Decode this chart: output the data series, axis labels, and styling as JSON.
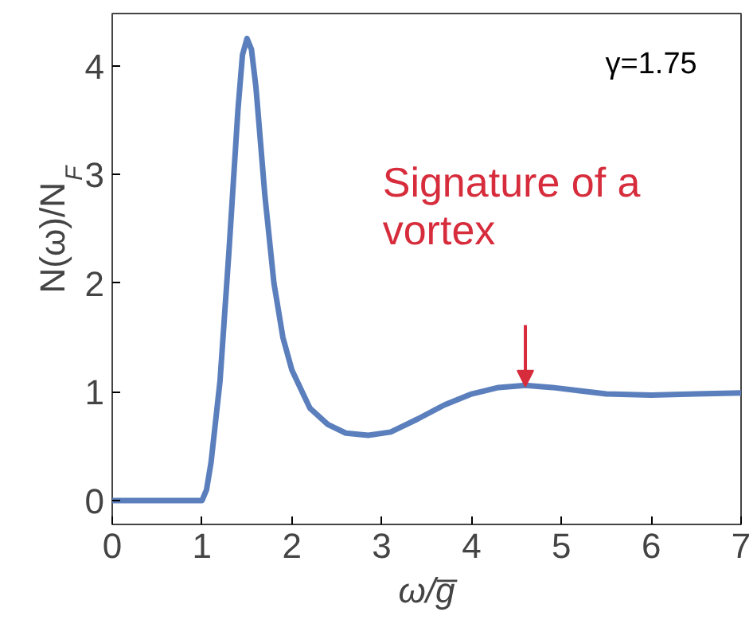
{
  "chart_data": {
    "type": "line",
    "xlabel": "ω/g̅",
    "ylabel": "N(ω)/N$_{F}$",
    "xlim": [
      0,
      7
    ],
    "ylim": [
      -0.22,
      4.48
    ],
    "xticks": [
      0,
      1,
      2,
      3,
      4,
      5,
      6,
      7
    ],
    "yticks": [
      0,
      1,
      2,
      3,
      4
    ],
    "grid": false,
    "series": [
      {
        "color": "#5b7fbc",
        "x": [
          0,
          1,
          1.05,
          1.1,
          1.2,
          1.3,
          1.4,
          1.45,
          1.5,
          1.55,
          1.6,
          1.7,
          1.8,
          1.9,
          2.0,
          2.2,
          2.4,
          2.6,
          2.85,
          3.1,
          3.4,
          3.7,
          4.0,
          4.3,
          4.6,
          4.9,
          5.2,
          5.5,
          6.0,
          6.5,
          7.0
        ],
        "values": [
          0,
          0,
          0.1,
          0.35,
          1.1,
          2.3,
          3.6,
          4.1,
          4.25,
          4.15,
          3.8,
          2.8,
          2.0,
          1.5,
          1.2,
          0.85,
          0.7,
          0.62,
          0.6,
          0.63,
          0.75,
          0.88,
          0.98,
          1.04,
          1.06,
          1.04,
          1.01,
          0.98,
          0.97,
          0.98,
          0.99
        ]
      }
    ],
    "annotations": [
      "γ=1.75",
      "Signature of a vortex"
    ]
  }
}
